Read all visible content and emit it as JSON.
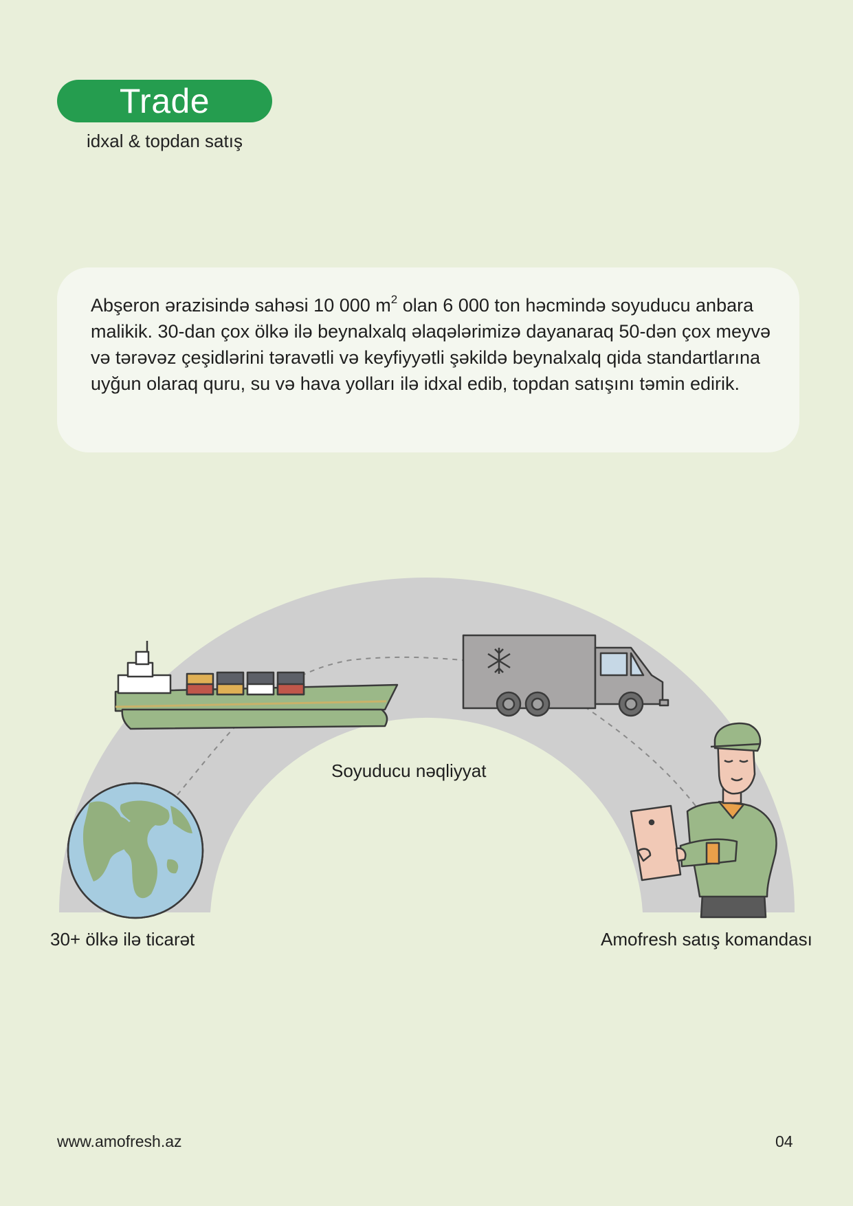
{
  "header": {
    "badge": "Trade",
    "subtitle": "idxal & topdan satış"
  },
  "intro": {
    "text_before_sup": "Abşeron ərazisində sahəsi 10 000 m",
    "sup": "2",
    "text_after_sup": " olan 6 000 ton həcmində soyuducu anbara malikik. 30-dan çox ölkə ilə beynalxalq əlaqələrimizə dayanaraq 50-dən çox meyvə və tərəvəz çeşidlərini təravətli və keyfiyyətli şəkildə beynalxalq qida standartlarına uyğun olaraq quru, su və hava yolları ilə idxal edib, topdan satışını təmin edirik."
  },
  "illustration": {
    "colors": {
      "arc": "#cfcfcf",
      "ship_hull": "#9bb888",
      "globe_ocean": "#a6cce0",
      "globe_land": "#93b07e",
      "truck": "#a8a6a6",
      "person_shirt": "#9bbb86",
      "tablet": "#f1c9b6",
      "outline": "#3a3a3a"
    },
    "icons": [
      "cargo-ship-icon",
      "refrigerated-truck-icon",
      "snowflake-icon",
      "globe-icon",
      "sales-person-icon",
      "tablet-icon"
    ],
    "captions": {
      "transport": "Soyuducu nəqliyyat",
      "trade": "30+ ölkə ilə ticarət",
      "team": "Amofresh satış komandası"
    }
  },
  "footer": {
    "url": "www.amofresh.az",
    "page": "04"
  }
}
